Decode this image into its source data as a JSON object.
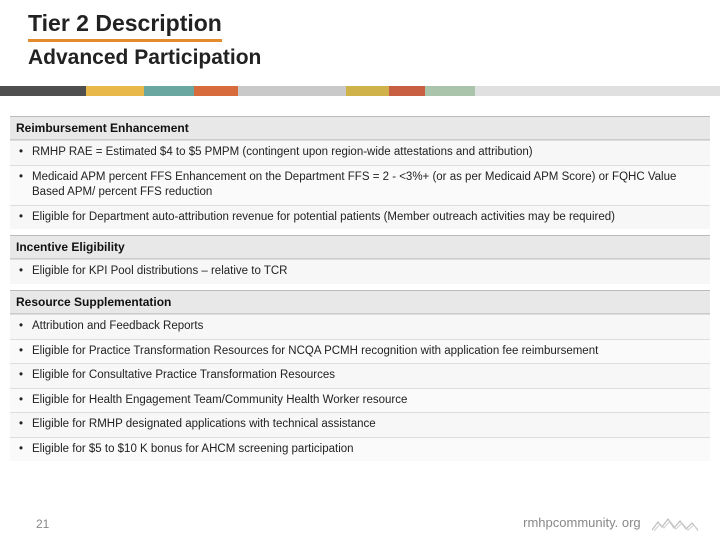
{
  "title": "Tier 2 Description",
  "subtitle": "Advanced Participation",
  "title_underline_color": "#e38b2d",
  "color_bar": [
    {
      "c": "#4f4f4f",
      "w": 12
    },
    {
      "c": "#e9b84a",
      "w": 8
    },
    {
      "c": "#6aa7a0",
      "w": 7
    },
    {
      "c": "#d86b3c",
      "w": 6
    },
    {
      "c": "#c9c9c9",
      "w": 15
    },
    {
      "c": "#d0b24a",
      "w": 6
    },
    {
      "c": "#c95f42",
      "w": 5
    },
    {
      "c": "#a9c4ab",
      "w": 7
    },
    {
      "c": "#e0e0e0",
      "w": 34
    }
  ],
  "sections": [
    {
      "head": "Reimbursement Enhancement",
      "items": [
        "RMHP RAE = Estimated $4 to $5 PMPM (contingent upon region-wide attestations and attribution)",
        "Medicaid APM percent FFS Enhancement on the Department FFS = 2 - <3%+ (or as per Medicaid APM Score) or FQHC Value Based APM/ percent FFS reduction",
        "Eligible for Department auto-attribution revenue for potential patients (Member outreach activities may be required)"
      ]
    },
    {
      "head": "Incentive Eligibility",
      "items": [
        "Eligible for KPI Pool distributions – relative to TCR"
      ]
    },
    {
      "head": "Resource Supplementation",
      "items": [
        "Attribution and Feedback Reports",
        "Eligible for Practice Transformation Resources for NCQA PCMH recognition with application fee reimbursement",
        "Eligible for Consultative Practice Transformation Resources",
        "Eligible for Health Engagement Team/Community Health Worker resource",
        "Eligible for RMHP designated applications with technical assistance",
        "Eligible for $5 to $10 K bonus for AHCM screening participation"
      ]
    }
  ],
  "page_number": "21",
  "footer_url": "rmhpcommunity. org",
  "colors": {
    "section_head_bg": "#e8e8e8",
    "row_border": "#dddddd",
    "footer_text": "#888888",
    "mountain": "#bdbdbd"
  }
}
